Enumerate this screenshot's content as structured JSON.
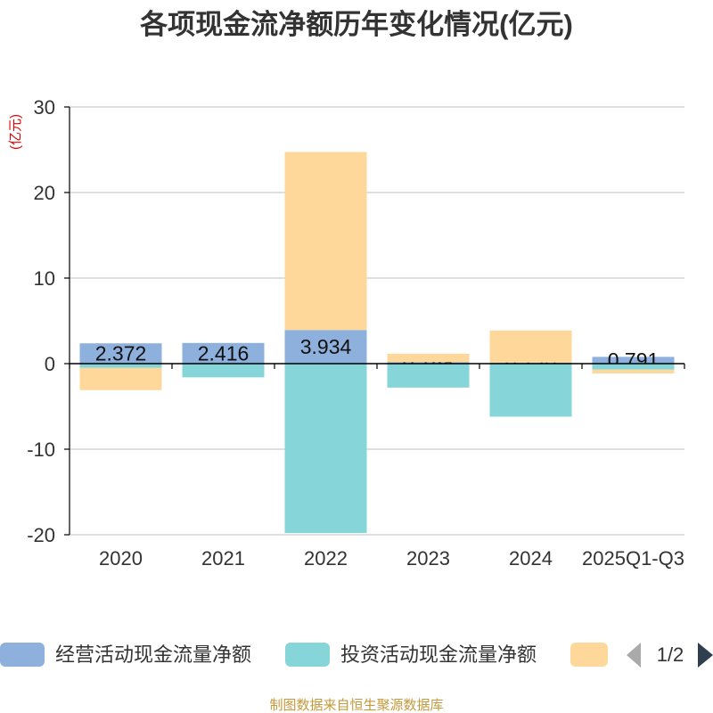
{
  "title": "各项现金流净额历年变化情况(亿元)",
  "footer": "制图数据来自恒生聚源数据库",
  "legend": {
    "page": "1/2"
  },
  "colors": {
    "axis": "#000000",
    "grid": "#cccccc",
    "arrow_inactive": "#aaaaaa",
    "arrow_active": "#2f3f50"
  },
  "chart_data": {
    "type": "bar",
    "stacked": true,
    "title": "各项现金流净额历年变化情况(亿元)",
    "xlabel": "",
    "ylabel": "(亿元)",
    "categories": [
      "2020",
      "2021",
      "2022",
      "2023",
      "2024",
      "2025Q1-Q3"
    ],
    "ylim": [
      -20,
      30
    ],
    "yticks": [
      -20,
      -10,
      0,
      10,
      20,
      30
    ],
    "grid": true,
    "legend_position": "bottom",
    "series": [
      {
        "name": "经营活动现金流量净额",
        "color": "#8eb0dc",
        "show_labels": true,
        "values": [
          2.372,
          2.416,
          3.934,
          0.158,
          0.12,
          0.791
        ]
      },
      {
        "name": "投资活动现金流量净额",
        "color": "#86d5d8",
        "show_labels": false,
        "values": [
          -0.5,
          -1.6,
          -19.8,
          -2.8,
          -6.2,
          -0.7
        ]
      },
      {
        "name": "",
        "color": "#fdd89a",
        "show_labels": false,
        "values": [
          -2.6,
          0,
          20.8,
          1.0,
          3.75,
          -0.45
        ]
      }
    ]
  }
}
